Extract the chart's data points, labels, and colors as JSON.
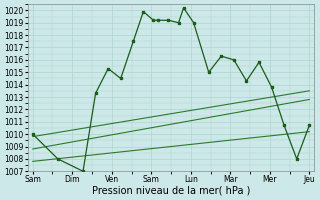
{
  "xlabel": "Pression niveau de la mer( hPa )",
  "ylim": [
    1007,
    1020.5
  ],
  "yticks": [
    1007,
    1008,
    1009,
    1010,
    1011,
    1012,
    1013,
    1014,
    1015,
    1016,
    1017,
    1018,
    1019,
    1020
  ],
  "xtick_labels": [
    "Sam",
    "Dim",
    "Ven",
    "Sam",
    "Lun",
    "Mar",
    "Mer",
    "Jeu"
  ],
  "bg_color": "#cde8e8",
  "grid_color": "#b0d4cc",
  "line_color": "#1a5c1a",
  "trend_color": "#2a7a2a",
  "px": [
    0,
    1,
    2,
    2.5,
    3,
    3.5,
    4,
    4.4,
    4.8,
    5,
    5.4,
    5.8,
    6,
    6.4,
    7,
    7.5,
    8,
    8.5,
    9,
    9.5,
    10,
    10.5,
    11
  ],
  "py": [
    1010.0,
    1008.0,
    1007.0,
    1013.3,
    1015.3,
    1014.5,
    1017.5,
    1019.9,
    1019.2,
    1019.2,
    1019.2,
    1019.0,
    1020.2,
    1019.0,
    1015.0,
    1016.3,
    1016.0,
    1014.3,
    1015.8,
    1013.8,
    1010.7,
    1008.0,
    1010.7
  ],
  "trend1_x": [
    0,
    11
  ],
  "trend1_y": [
    1009.8,
    1013.5
  ],
  "trend2_x": [
    0,
    11
  ],
  "trend2_y": [
    1008.8,
    1012.8
  ],
  "trend3_x": [
    0,
    11
  ],
  "trend3_y": [
    1007.8,
    1010.2
  ],
  "xlim": [
    -0.2,
    11.2
  ]
}
